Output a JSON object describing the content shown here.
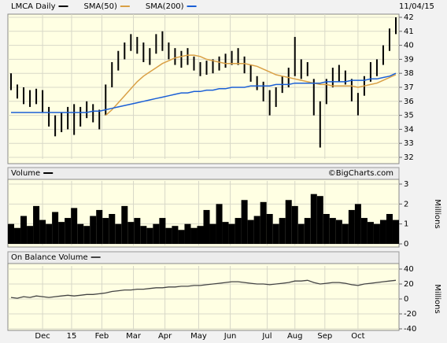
{
  "chart_data": [
    {
      "type": "hilo",
      "title": "LMCA Daily",
      "annotation": "11/04/15",
      "xlim": [
        -0.5,
        61.5
      ],
      "xticks": [
        5,
        9.6,
        14.4,
        19.4,
        24.4,
        29.75,
        34.75,
        40.6,
        45,
        49.75,
        55
      ],
      "ylim": [
        32,
        42
      ],
      "yticks": [
        32,
        33,
        34,
        35,
        36,
        37,
        38,
        39,
        40,
        41,
        42
      ],
      "grid": true,
      "series": [
        {
          "name": "LMCA Daily",
          "color": "#000000",
          "high": [
            38.0,
            37.2,
            37.0,
            36.8,
            36.9,
            36.8,
            35.6,
            35.0,
            35.2,
            35.6,
            35.8,
            35.6,
            36.0,
            35.8,
            35.4,
            37.2,
            38.8,
            39.6,
            40.2,
            40.8,
            40.6,
            40.2,
            39.8,
            40.8,
            41.0,
            40.2,
            39.8,
            39.6,
            39.8,
            39.2,
            38.8,
            38.9,
            39.0,
            39.2,
            39.4,
            39.6,
            39.8,
            39.2,
            38.6,
            37.8,
            37.4,
            36.8,
            37.0,
            37.8,
            38.4,
            40.6,
            39.0,
            38.8,
            37.6,
            36.0,
            37.6,
            38.4,
            38.6,
            38.2,
            37.6,
            36.6,
            37.8,
            38.8,
            39.0,
            40.0,
            41.2,
            42.0
          ],
          "low": [
            36.8,
            36.2,
            35.8,
            35.6,
            35.8,
            35.2,
            34.2,
            33.5,
            33.8,
            34.0,
            33.6,
            34.2,
            34.8,
            34.5,
            34.0,
            35.0,
            37.0,
            38.2,
            39.0,
            39.6,
            39.4,
            38.8,
            38.6,
            39.4,
            39.6,
            39.0,
            38.6,
            38.4,
            38.6,
            38.2,
            37.8,
            37.9,
            38.0,
            38.2,
            38.4,
            38.6,
            38.6,
            38.0,
            37.4,
            36.8,
            36.0,
            35.0,
            35.6,
            36.6,
            37.0,
            37.8,
            37.6,
            37.8,
            35.0,
            32.7,
            35.8,
            37.0,
            37.4,
            37.2,
            36.0,
            35.0,
            36.4,
            37.4,
            37.8,
            38.6,
            39.6,
            40.8
          ]
        },
        {
          "name": "SMA(50)",
          "color": "#d9a046",
          "values": [
            null,
            null,
            null,
            null,
            null,
            null,
            null,
            null,
            null,
            null,
            null,
            null,
            null,
            null,
            null,
            35.0,
            35.4,
            35.9,
            36.4,
            36.9,
            37.4,
            37.8,
            38.1,
            38.4,
            38.7,
            38.9,
            39.1,
            39.2,
            39.3,
            39.3,
            39.2,
            39.0,
            38.9,
            38.8,
            38.7,
            38.7,
            38.7,
            38.7,
            38.6,
            38.5,
            38.3,
            38.1,
            37.9,
            37.8,
            37.7,
            37.6,
            37.5,
            37.4,
            37.3,
            37.2,
            37.2,
            37.1,
            37.1,
            37.1,
            37.1,
            37.0,
            37.1,
            37.2,
            37.3,
            37.5,
            37.7,
            37.9
          ]
        },
        {
          "name": "SMA(200)",
          "color": "#1a5fd6",
          "values": [
            35.2,
            35.2,
            35.2,
            35.2,
            35.2,
            35.2,
            35.2,
            35.2,
            35.2,
            35.2,
            35.2,
            35.2,
            35.2,
            35.3,
            35.3,
            35.4,
            35.5,
            35.6,
            35.7,
            35.8,
            35.9,
            36.0,
            36.1,
            36.2,
            36.3,
            36.4,
            36.5,
            36.6,
            36.6,
            36.7,
            36.7,
            36.8,
            36.8,
            36.9,
            36.9,
            37.0,
            37.0,
            37.0,
            37.1,
            37.1,
            37.1,
            37.1,
            37.2,
            37.2,
            37.2,
            37.3,
            37.3,
            37.3,
            37.3,
            37.3,
            37.4,
            37.4,
            37.4,
            37.4,
            37.5,
            37.5,
            37.5,
            37.6,
            37.6,
            37.7,
            37.8,
            38.0
          ]
        }
      ]
    },
    {
      "type": "bar",
      "title": "Volume",
      "annotation": "©BigCharts.com",
      "y_label": "Millions",
      "xlim": [
        -0.5,
        61.5
      ],
      "xticks": [
        5,
        9.6,
        14.4,
        19.4,
        24.4,
        29.75,
        34.75,
        40.6,
        45,
        49.75,
        55
      ],
      "ylim": [
        0,
        3
      ],
      "yticks": [
        0,
        1,
        2,
        3
      ],
      "grid": true,
      "series": [
        {
          "name": "Volume",
          "color": "#000000",
          "values": [
            1.0,
            0.8,
            1.4,
            0.9,
            1.9,
            1.2,
            1.0,
            1.6,
            1.1,
            1.3,
            1.8,
            1.0,
            0.9,
            1.4,
            1.7,
            1.3,
            1.5,
            1.0,
            1.9,
            1.1,
            1.3,
            0.9,
            0.8,
            1.0,
            1.3,
            0.8,
            0.9,
            0.7,
            1.0,
            0.8,
            0.9,
            1.7,
            1.0,
            2.0,
            1.1,
            1.0,
            1.3,
            2.2,
            1.2,
            1.4,
            2.1,
            1.5,
            1.0,
            1.3,
            2.2,
            1.9,
            1.0,
            1.3,
            2.5,
            2.4,
            1.5,
            1.3,
            1.2,
            1.0,
            1.7,
            2.0,
            1.3,
            1.1,
            1.0,
            1.2,
            1.5,
            1.2
          ]
        }
      ]
    },
    {
      "type": "line",
      "title": "On Balance Volume",
      "y_label": "Millions",
      "xlim": [
        -0.5,
        61.5
      ],
      "xticks": [
        {
          "value": 5,
          "label": "Dec"
        },
        {
          "value": 9.6,
          "label": "15"
        },
        {
          "value": 14.4,
          "label": "Feb"
        },
        {
          "value": 19.4,
          "label": "Mar"
        },
        {
          "value": 24.4,
          "label": "Apr"
        },
        {
          "value": 29.75,
          "label": "May"
        },
        {
          "value": 34.75,
          "label": "Jun"
        },
        {
          "value": 40.6,
          "label": "Jul"
        },
        {
          "value": 45,
          "label": "Aug"
        },
        {
          "value": 49.75,
          "label": "Sep"
        },
        {
          "value": 55,
          "label": "Oct"
        }
      ],
      "ylim": [
        -40,
        40
      ],
      "yticks": [
        -40,
        -20,
        0,
        20,
        40
      ],
      "grid": true,
      "series": [
        {
          "name": "On Balance Volume",
          "color": "#444444",
          "values": [
            2,
            1,
            3,
            2,
            4,
            3,
            2,
            3,
            4,
            5,
            4,
            5,
            6,
            6,
            7,
            8,
            10,
            11,
            12,
            12,
            13,
            13,
            14,
            15,
            15,
            16,
            16,
            17,
            17,
            18,
            18,
            19,
            20,
            21,
            22,
            23,
            23,
            22,
            21,
            20,
            20,
            19,
            20,
            21,
            22,
            24,
            24,
            25,
            22,
            20,
            21,
            22,
            22,
            21,
            19,
            18,
            20,
            21,
            22,
            23,
            24,
            25
          ]
        }
      ]
    }
  ]
}
